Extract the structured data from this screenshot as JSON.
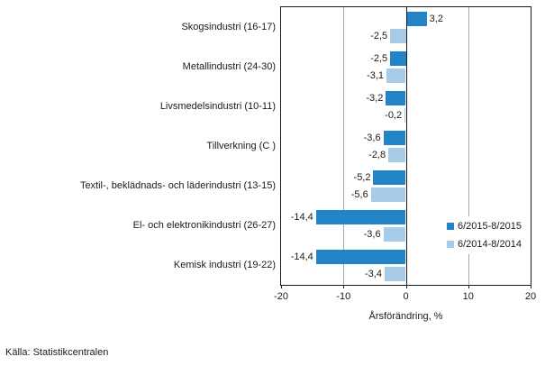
{
  "chart_data": {
    "type": "bar",
    "orientation": "horizontal",
    "title": "",
    "categories": [
      "Skogsindustri (16-17)",
      "Metallindustri (24-30)",
      "Livsmedelsindustri (10-11)",
      "Tillverkning (C )",
      "Textil-, beklädnads- och läderindustri (13-15)",
      "El- och elektronikindustri (26-27)",
      "Kemisk industri (19-22)"
    ],
    "series": [
      {
        "name": "6/2015-8/2015",
        "color": "#2385c8",
        "values": [
          3.2,
          -2.5,
          -3.2,
          -3.6,
          -5.2,
          -14.4,
          -14.4
        ],
        "labels": [
          "3,2",
          "-2,5",
          "-3,2",
          "-3,6",
          "-5,2",
          "-14,4",
          "-14,4"
        ]
      },
      {
        "name": "6/2014-8/2014",
        "color": "#a8cbe8",
        "values": [
          -2.5,
          -3.1,
          -0.2,
          -2.8,
          -5.6,
          -3.6,
          -3.4
        ],
        "labels": [
          "-2,5",
          "-3,1",
          "-0,2",
          "-2,8",
          "-5,6",
          "-3,6",
          "-3,4"
        ]
      }
    ],
    "xlabel": "Årsförändring, %",
    "xlim": [
      -20,
      20
    ],
    "x_ticks": [
      -20,
      -10,
      0,
      10,
      20
    ],
    "x_tick_labels": [
      "-20",
      "-10",
      "0",
      "10",
      "20"
    ],
    "grid": "vertical gridlines at -10 and 10, solid zero line",
    "legend_position": "inside-right"
  },
  "colors": {
    "series_dark": "#2385c8",
    "series_light": "#a8cbe8",
    "gridline": "#a6a6a6",
    "axis": "#1a1a1a",
    "background": "#ffffff"
  },
  "source": "Källa: Statistikcentralen"
}
